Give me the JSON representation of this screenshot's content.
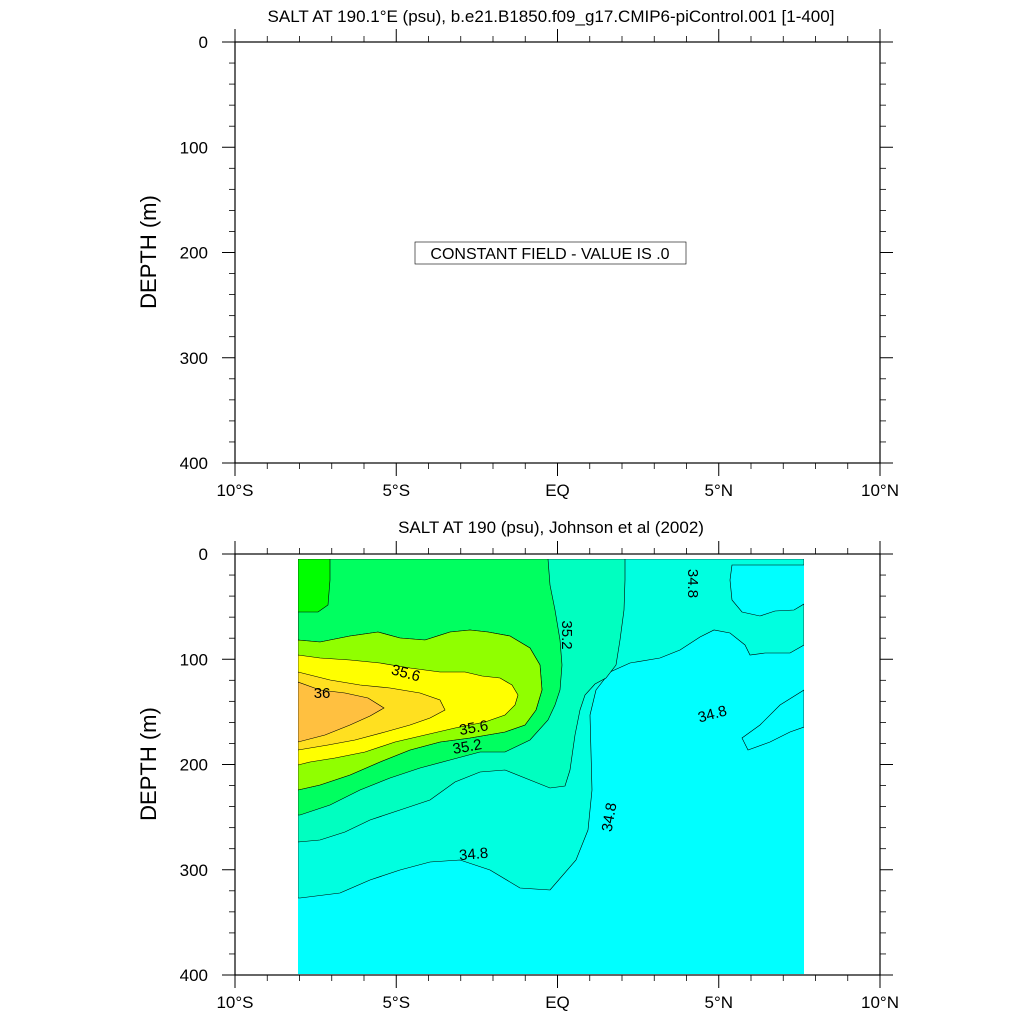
{
  "chart_data": [
    {
      "type": "contour",
      "title": "SALT AT 190.1°E (psu), b.e21.B1850.f09_g17.CMIP6-piControl.001 [1-400]",
      "ylabel": "DEPTH (m)",
      "xticks": [
        {
          "value": -10,
          "label": "10°S"
        },
        {
          "value": -5,
          "label": "5°S"
        },
        {
          "value": 0,
          "label": "EQ"
        },
        {
          "value": 5,
          "label": "5°N"
        },
        {
          "value": 10,
          "label": "10°N"
        }
      ],
      "yticks": [
        {
          "value": 0,
          "label": "0"
        },
        {
          "value": 100,
          "label": "100"
        },
        {
          "value": 200,
          "label": "200"
        },
        {
          "value": 300,
          "label": "300"
        },
        {
          "value": 400,
          "label": "400"
        }
      ],
      "xlim": [
        -10,
        10
      ],
      "ylim": [
        0,
        400
      ],
      "y_reversed": true,
      "annotation": "CONSTANT FIELD - VALUE IS .0"
    },
    {
      "type": "contour",
      "title": "SALT AT 190 (psu), Johnson et al (2002)",
      "ylabel": "DEPTH (m)",
      "xticks": [
        {
          "value": -10,
          "label": "10°S"
        },
        {
          "value": -5,
          "label": "5°S"
        },
        {
          "value": 0,
          "label": "EQ"
        },
        {
          "value": 5,
          "label": "5°N"
        },
        {
          "value": 10,
          "label": "10°N"
        }
      ],
      "yticks": [
        {
          "value": 0,
          "label": "0"
        },
        {
          "value": 100,
          "label": "100"
        },
        {
          "value": 200,
          "label": "200"
        },
        {
          "value": 300,
          "label": "300"
        },
        {
          "value": 400,
          "label": "400"
        }
      ],
      "xlim": [
        -10,
        10
      ],
      "ylim": [
        0,
        400
      ],
      "y_reversed": true,
      "data_extent": {
        "x": [
          -8,
          8
        ],
        "y": [
          5,
          400
        ]
      },
      "contour_levels": [
        34.6,
        34.8,
        35.0,
        35.2,
        35.4,
        35.6,
        35.8,
        36.0,
        36.2
      ],
      "fill_colors": {
        "below_34.6": "#00ffff",
        "34.6-34.8": "#00ffe0",
        "34.8-35.0": "#00ffc0",
        "35.0-35.2": "#00ff60",
        "35.2-35.4": "#00ff00",
        "35.4-35.6": "#90ff00",
        "35.6-35.8": "#ffff00",
        "35.8-36.0": "#ffe020",
        "36.0-36.2": "#ffc040"
      },
      "contour_labels": [
        {
          "value": "34.8",
          "x": 4.2,
          "depth": 28
        },
        {
          "value": "35.2",
          "x": 0.3,
          "depth": 77
        },
        {
          "value": "35.6",
          "x": -4.7,
          "depth": 113
        },
        {
          "value": "36",
          "x": -7.3,
          "depth": 132
        },
        {
          "value": "35.6",
          "x": -2.6,
          "depth": 165
        },
        {
          "value": "35.2",
          "x": -2.8,
          "depth": 183
        },
        {
          "value": "34.8",
          "x": 4.8,
          "depth": 152
        },
        {
          "value": "34.8",
          "x": 1.6,
          "depth": 250
        },
        {
          "value": "34.8",
          "x": -2.6,
          "depth": 285
        }
      ]
    }
  ]
}
